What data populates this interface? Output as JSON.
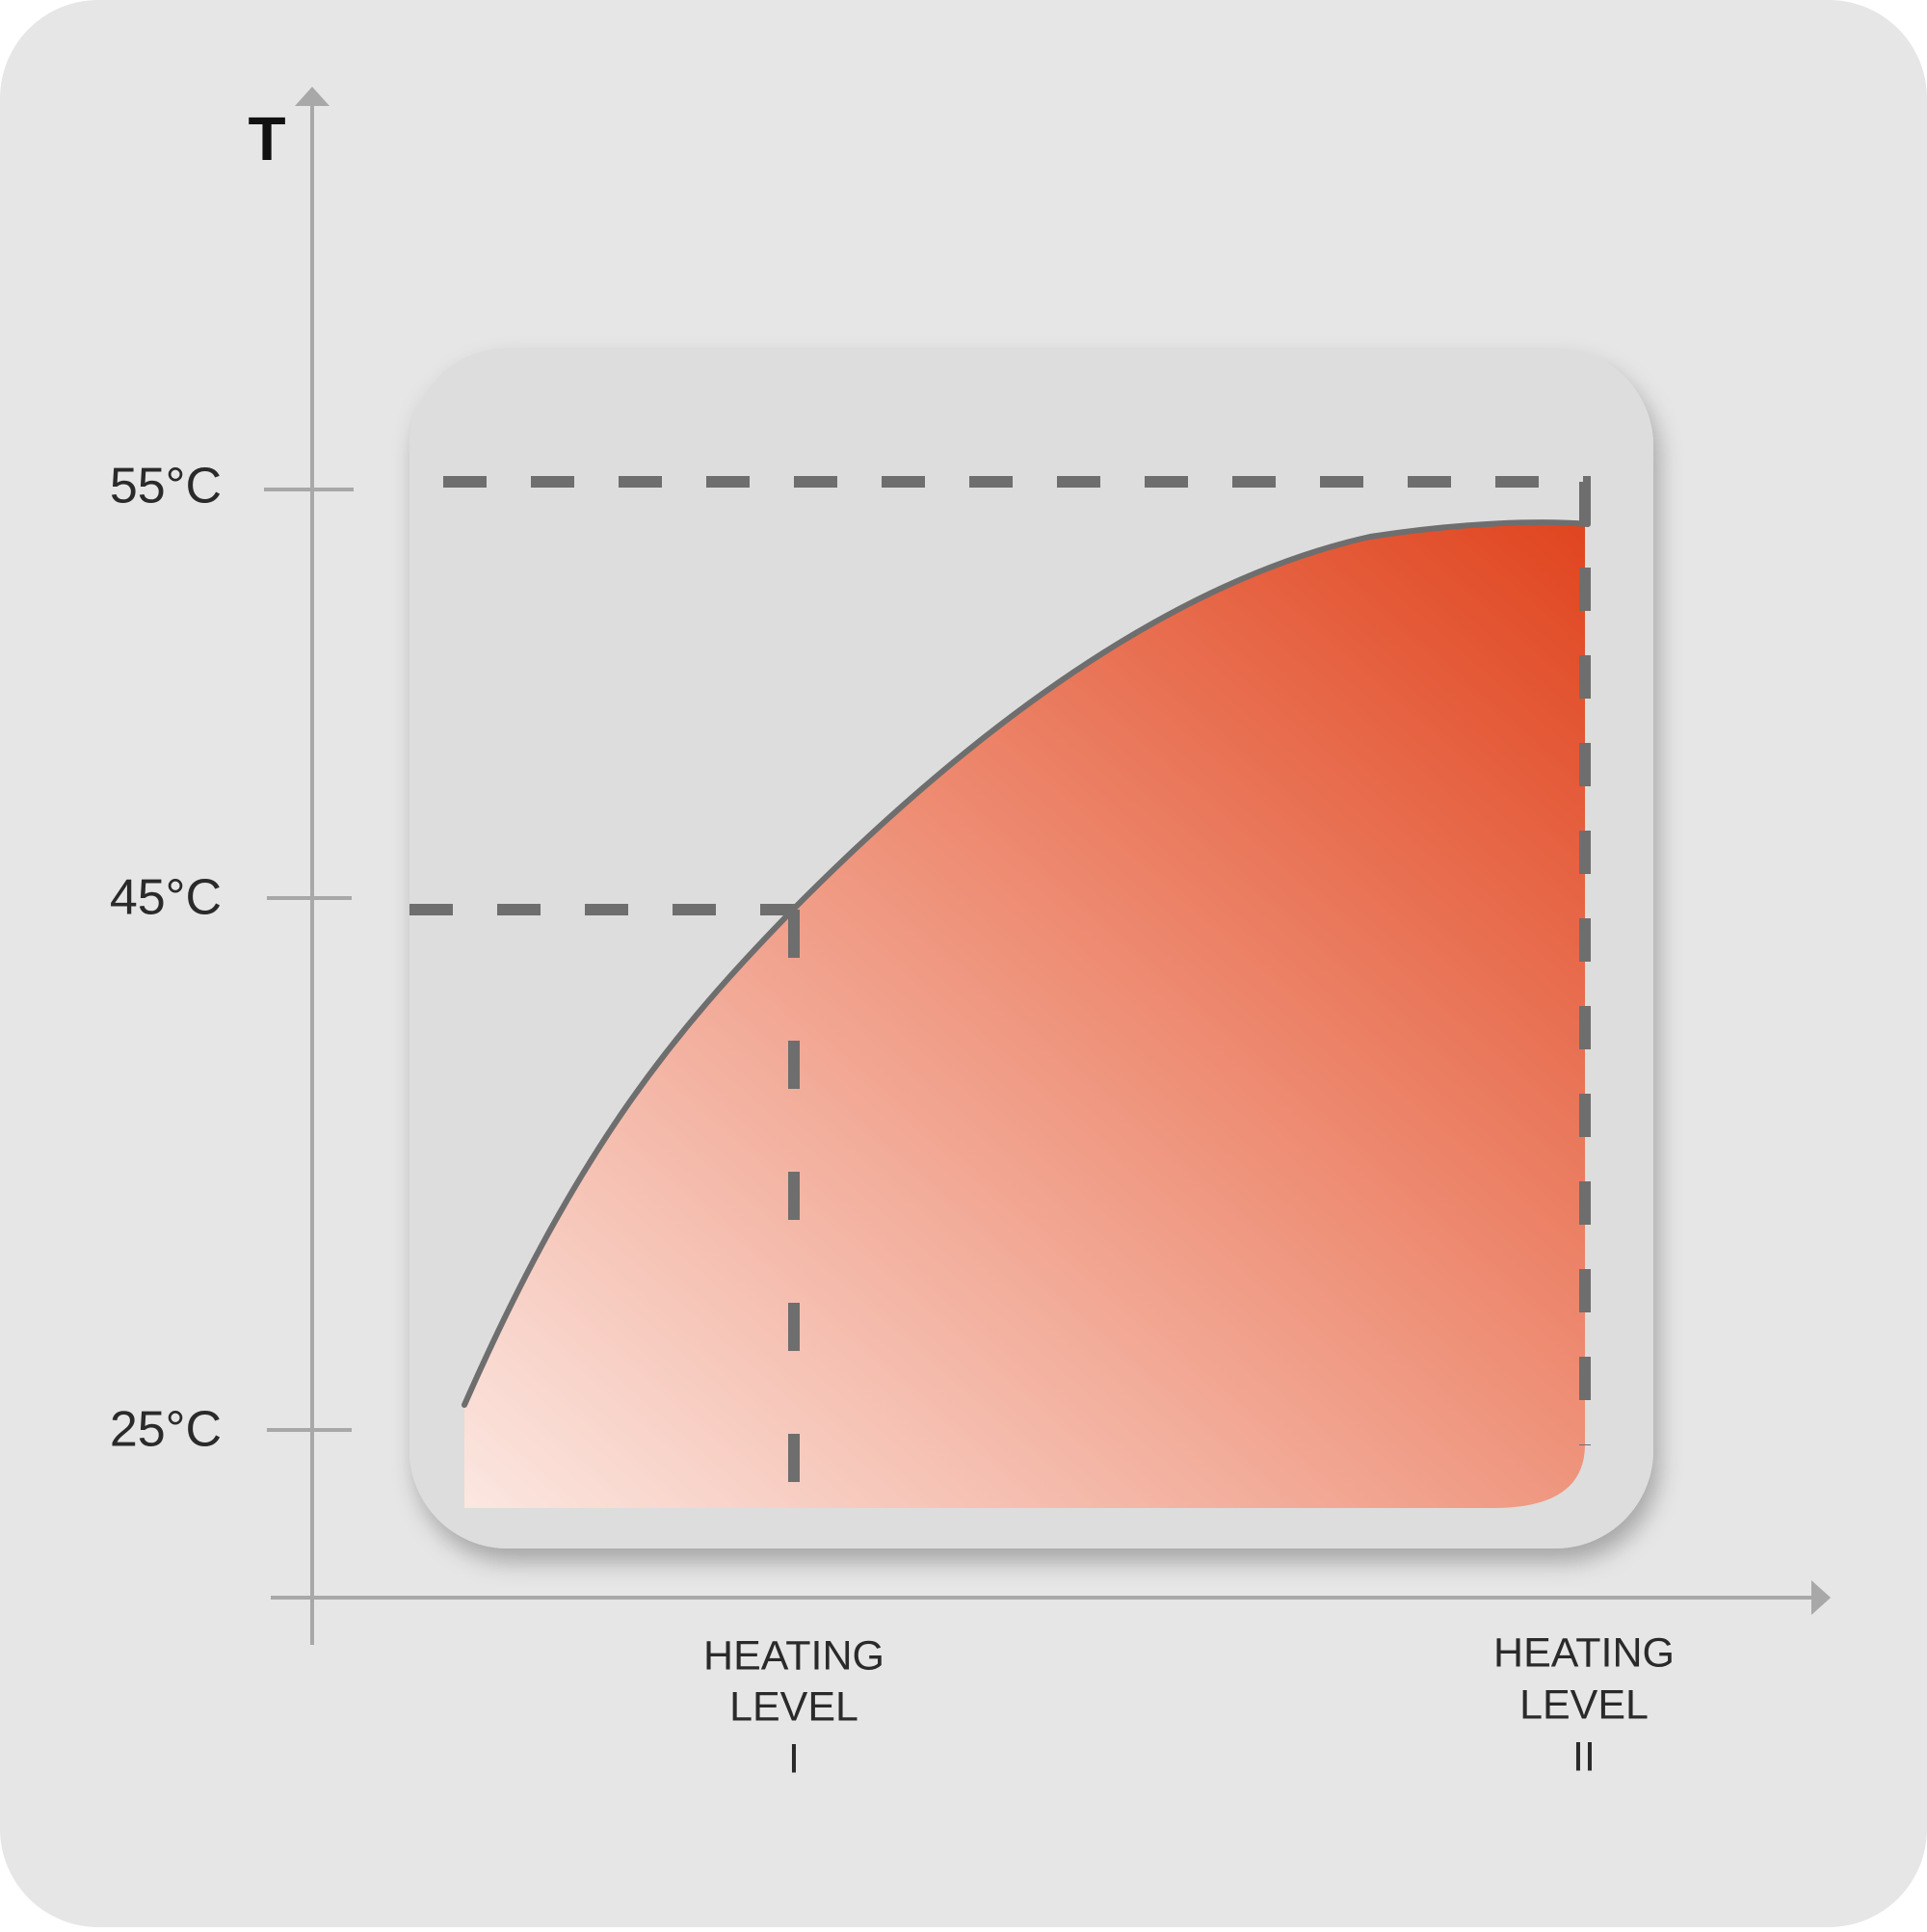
{
  "axis": {
    "y_label": "T",
    "ticks": [
      "55°C",
      "45°C",
      "25°C"
    ]
  },
  "levels": [
    {
      "lines": [
        "HEATING",
        "LEVEL",
        "I"
      ]
    },
    {
      "lines": [
        "HEATING",
        "LEVEL",
        "II"
      ]
    }
  ]
}
